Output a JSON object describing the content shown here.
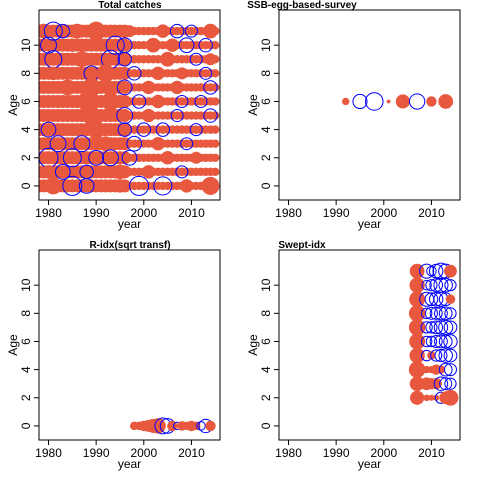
{
  "colors": {
    "positive": "#E8583F",
    "negative": "#0000FF",
    "axis": "#000000"
  },
  "chart_data": [
    {
      "type": "scatter",
      "title": "Total catches",
      "xlabel": "year",
      "ylabel": "Age",
      "xlim": [
        1978,
        2016
      ],
      "ylim": [
        -1,
        12.5
      ],
      "xticks": [
        1980,
        1990,
        2000,
        2010
      ],
      "yticks": [
        0,
        2,
        4,
        6,
        8,
        10
      ],
      "grid": false,
      "bubble_rule": "residuals for years 1978-2015 at ages 0-11; positive=filled red, negative=open blue",
      "points": [
        {
          "year": 1979,
          "age": 11,
          "value": 0.6
        },
        {
          "year": 1981,
          "age": 11,
          "value": -0.9
        },
        {
          "year": 1983,
          "age": 11,
          "value": -0.5
        },
        {
          "year": 1986,
          "age": 11,
          "value": 0.6
        },
        {
          "year": 1990,
          "age": 11,
          "value": 1.0
        },
        {
          "year": 1997,
          "age": 11,
          "value": 0.4
        },
        {
          "year": 2004,
          "age": 11,
          "value": 0.5
        },
        {
          "year": 2007,
          "age": 11,
          "value": -0.5
        },
        {
          "year": 2010,
          "age": 11,
          "value": -0.4
        },
        {
          "year": 2014,
          "age": 11,
          "value": 0.6
        },
        {
          "year": 1980,
          "age": 10,
          "value": -0.7
        },
        {
          "year": 1985,
          "age": 10,
          "value": 0.5
        },
        {
          "year": 1994,
          "age": 10,
          "value": -0.9
        },
        {
          "year": 1996,
          "age": 10,
          "value": -0.6
        },
        {
          "year": 2002,
          "age": 10,
          "value": 0.6
        },
        {
          "year": 2006,
          "age": 10,
          "value": 0.5
        },
        {
          "year": 2009,
          "age": 10,
          "value": -0.6
        },
        {
          "year": 2013,
          "age": 10,
          "value": -0.5
        },
        {
          "year": 1981,
          "age": 9,
          "value": -0.8
        },
        {
          "year": 1987,
          "age": 9,
          "value": 0.7
        },
        {
          "year": 1993,
          "age": 9,
          "value": -0.9
        },
        {
          "year": 1996,
          "age": 9,
          "value": -0.5
        },
        {
          "year": 2005,
          "age": 9,
          "value": 0.6
        },
        {
          "year": 2011,
          "age": 9,
          "value": -0.4
        },
        {
          "year": 2014,
          "age": 9,
          "value": 0.4
        },
        {
          "year": 1981,
          "age": 8,
          "value": 0.5
        },
        {
          "year": 1989,
          "age": 8,
          "value": -0.6
        },
        {
          "year": 1992,
          "age": 8,
          "value": 0.9
        },
        {
          "year": 1998,
          "age": 8,
          "value": -0.5
        },
        {
          "year": 2003,
          "age": 8,
          "value": 0.5
        },
        {
          "year": 2008,
          "age": 8,
          "value": 0.4
        },
        {
          "year": 2013,
          "age": 8,
          "value": -0.4
        },
        {
          "year": 1984,
          "age": 7,
          "value": 0.7
        },
        {
          "year": 1989,
          "age": 7,
          "value": 1.0
        },
        {
          "year": 1996,
          "age": 7,
          "value": -0.6
        },
        {
          "year": 2001,
          "age": 7,
          "value": 0.5
        },
        {
          "year": 2007,
          "age": 7,
          "value": 0.5
        },
        {
          "year": 2014,
          "age": 7,
          "value": -0.5
        },
        {
          "year": 1988,
          "age": 6,
          "value": 1.0
        },
        {
          "year": 1993,
          "age": 6,
          "value": 0.9
        },
        {
          "year": 1999,
          "age": 6,
          "value": -0.5
        },
        {
          "year": 2003,
          "age": 6,
          "value": 0.5
        },
        {
          "year": 2008,
          "age": 6,
          "value": -0.4
        },
        {
          "year": 2012,
          "age": 6,
          "value": -0.4
        },
        {
          "year": 1989,
          "age": 5,
          "value": 1.0
        },
        {
          "year": 1996,
          "age": 5,
          "value": -0.7
        },
        {
          "year": 2001,
          "age": 5,
          "value": 0.5
        },
        {
          "year": 2007,
          "age": 5,
          "value": -0.4
        },
        {
          "year": 2014,
          "age": 5,
          "value": -0.5
        },
        {
          "year": 1980,
          "age": 4,
          "value": -0.6
        },
        {
          "year": 1990,
          "age": 4,
          "value": 0.9
        },
        {
          "year": 1996,
          "age": 4,
          "value": -0.5
        },
        {
          "year": 2000,
          "age": 4,
          "value": -0.5
        },
        {
          "year": 2004,
          "age": 4,
          "value": -0.5
        },
        {
          "year": 2011,
          "age": 4,
          "value": -0.4
        },
        {
          "year": 1982,
          "age": 3,
          "value": -0.7
        },
        {
          "year": 1987,
          "age": 3,
          "value": -0.7
        },
        {
          "year": 1992,
          "age": 3,
          "value": 0.6
        },
        {
          "year": 1998,
          "age": 3,
          "value": -0.6
        },
        {
          "year": 2003,
          "age": 3,
          "value": 0.5
        },
        {
          "year": 2009,
          "age": 3,
          "value": -0.4
        },
        {
          "year": 1980,
          "age": 2,
          "value": -1.0
        },
        {
          "year": 1985,
          "age": 2,
          "value": -0.9
        },
        {
          "year": 1990,
          "age": 2,
          "value": -0.6
        },
        {
          "year": 1993,
          "age": 2,
          "value": -0.7
        },
        {
          "year": 1997,
          "age": 2,
          "value": -0.6
        },
        {
          "year": 2005,
          "age": 2,
          "value": 0.5
        },
        {
          "year": 2011,
          "age": 2,
          "value": 0.4
        },
        {
          "year": 1980,
          "age": 1,
          "value": 0.5
        },
        {
          "year": 1983,
          "age": 1,
          "value": -0.6
        },
        {
          "year": 1988,
          "age": 1,
          "value": -0.5
        },
        {
          "year": 1995,
          "age": 1,
          "value": 0.6
        },
        {
          "year": 2001,
          "age": 1,
          "value": 0.5
        },
        {
          "year": 2008,
          "age": 1,
          "value": -0.4
        },
        {
          "year": 1981,
          "age": 0,
          "value": 0.8
        },
        {
          "year": 1985,
          "age": 0,
          "value": -1.0
        },
        {
          "year": 1988,
          "age": 0,
          "value": -0.6
        },
        {
          "year": 1995,
          "age": 0,
          "value": 0.5
        },
        {
          "year": 1999,
          "age": 0,
          "value": -1.0
        },
        {
          "year": 2004,
          "age": 0,
          "value": -0.9
        },
        {
          "year": 2009,
          "age": 0,
          "value": 0.5
        },
        {
          "year": 2014,
          "age": 0,
          "value": 0.9
        }
      ]
    },
    {
      "type": "scatter",
      "title": "SSB-egg-based-survey",
      "xlabel": "year",
      "ylabel": "Age",
      "xlim": [
        1978,
        2016
      ],
      "ylim": [
        -1,
        12.5
      ],
      "xticks": [
        1980,
        1990,
        2000,
        2010
      ],
      "yticks": [
        0,
        2,
        4,
        6,
        8,
        10
      ],
      "grid": false,
      "points": [
        {
          "year": 1992,
          "age": 6,
          "value": 0.15
        },
        {
          "year": 1995,
          "age": 6,
          "value": -0.55
        },
        {
          "year": 1998,
          "age": 6,
          "value": -0.85
        },
        {
          "year": 2001,
          "age": 6,
          "value": 0.04
        },
        {
          "year": 2004,
          "age": 6,
          "value": 0.55
        },
        {
          "year": 2007,
          "age": 6,
          "value": -0.65
        },
        {
          "year": 2010,
          "age": 6,
          "value": 0.3
        },
        {
          "year": 2013,
          "age": 6,
          "value": 0.6
        }
      ]
    },
    {
      "type": "scatter",
      "title": "R-idx(sqrt transf)",
      "xlabel": "year",
      "ylabel": "Age",
      "xlim": [
        1978,
        2016
      ],
      "ylim": [
        -1,
        12.5
      ],
      "xticks": [
        1980,
        1990,
        2000,
        2010
      ],
      "yticks": [
        0,
        2,
        4,
        6,
        8,
        10
      ],
      "grid": false,
      "points": [
        {
          "year": 1998,
          "age": 0,
          "value": 0.2
        },
        {
          "year": 1999,
          "age": 0,
          "value": 0.2
        },
        {
          "year": 2000,
          "age": 0,
          "value": 0.3
        },
        {
          "year": 2001,
          "age": 0,
          "value": 0.4
        },
        {
          "year": 2002,
          "age": 0,
          "value": 0.55
        },
        {
          "year": 2003,
          "age": 0,
          "value": 0.65
        },
        {
          "year": 2004,
          "age": 0,
          "value": -0.7
        },
        {
          "year": 2005,
          "age": 0,
          "value": -0.6
        },
        {
          "year": 2006,
          "age": 0,
          "value": 0.3
        },
        {
          "year": 2007,
          "age": 0,
          "value": -0.15
        },
        {
          "year": 2008,
          "age": 0,
          "value": 0.25
        },
        {
          "year": 2009,
          "age": 0,
          "value": 0.2
        },
        {
          "year": 2010,
          "age": 0,
          "value": 0.3
        },
        {
          "year": 2011,
          "age": 0,
          "value": 0.2
        },
        {
          "year": 2012,
          "age": 0,
          "value": -0.2
        },
        {
          "year": 2013,
          "age": 0,
          "value": -0.5
        },
        {
          "year": 2014,
          "age": 0,
          "value": 0.3
        }
      ]
    },
    {
      "type": "scatter",
      "title": "Swept-idx",
      "xlabel": "year",
      "ylabel": "Age",
      "xlim": [
        1978,
        2016
      ],
      "ylim": [
        -1,
        12.5
      ],
      "xticks": [
        1980,
        1990,
        2000,
        2010
      ],
      "yticks": [
        0,
        2,
        4,
        6,
        8,
        10
      ],
      "grid": false,
      "years": [
        2007,
        2009,
        2010,
        2011,
        2012,
        2013,
        2014
      ],
      "ages": [
        2,
        3,
        4,
        5,
        6,
        7,
        8,
        9,
        10,
        11
      ],
      "points": [
        {
          "year": 2007,
          "age": 2,
          "value": 0.55
        },
        {
          "year": 2007,
          "age": 3,
          "value": 0.6
        },
        {
          "year": 2007,
          "age": 4,
          "value": 0.75
        },
        {
          "year": 2007,
          "age": 5,
          "value": 0.65
        },
        {
          "year": 2007,
          "age": 6,
          "value": 0.7
        },
        {
          "year": 2007,
          "age": 7,
          "value": 0.75
        },
        {
          "year": 2007,
          "age": 8,
          "value": 0.75
        },
        {
          "year": 2007,
          "age": 9,
          "value": 0.7
        },
        {
          "year": 2007,
          "age": 10,
          "value": 0.65
        },
        {
          "year": 2007,
          "age": 11,
          "value": 0.6
        },
        {
          "year": 2009,
          "age": 2,
          "value": 0.12
        },
        {
          "year": 2009,
          "age": 3,
          "value": 0.45
        },
        {
          "year": 2009,
          "age": 4,
          "value": 0.15
        },
        {
          "year": 2009,
          "age": 5,
          "value": -0.3
        },
        {
          "year": 2009,
          "age": 6,
          "value": -0.3
        },
        {
          "year": 2009,
          "age": 7,
          "value": -0.35
        },
        {
          "year": 2009,
          "age": 8,
          "value": -0.3
        },
        {
          "year": 2009,
          "age": 9,
          "value": -0.55
        },
        {
          "year": 2009,
          "age": 10,
          "value": -0.25
        },
        {
          "year": 2009,
          "age": 11,
          "value": -0.55
        },
        {
          "year": 2010,
          "age": 2,
          "value": 0.1
        },
        {
          "year": 2010,
          "age": 3,
          "value": 0.35
        },
        {
          "year": 2010,
          "age": 4,
          "value": 0.15
        },
        {
          "year": 2010,
          "age": 5,
          "value": 0.2
        },
        {
          "year": 2010,
          "age": 6,
          "value": -0.3
        },
        {
          "year": 2010,
          "age": 7,
          "value": -0.35
        },
        {
          "year": 2010,
          "age": 8,
          "value": -0.4
        },
        {
          "year": 2010,
          "age": 9,
          "value": -0.45
        },
        {
          "year": 2010,
          "age": 10,
          "value": -0.35
        },
        {
          "year": 2010,
          "age": 11,
          "value": -0.25
        },
        {
          "year": 2011,
          "age": 2,
          "value": 0.1
        },
        {
          "year": 2011,
          "age": 3,
          "value": 0.35
        },
        {
          "year": 2011,
          "age": 4,
          "value": 0.3
        },
        {
          "year": 2011,
          "age": 5,
          "value": -0.35
        },
        {
          "year": 2011,
          "age": 6,
          "value": -0.4
        },
        {
          "year": 2011,
          "age": 7,
          "value": -0.45
        },
        {
          "year": 2011,
          "age": 8,
          "value": -0.4
        },
        {
          "year": 2011,
          "age": 9,
          "value": -0.5
        },
        {
          "year": 2011,
          "age": 10,
          "value": -0.45
        },
        {
          "year": 2011,
          "age": 11,
          "value": -0.5
        },
        {
          "year": 2012,
          "age": 2,
          "value": -0.35
        },
        {
          "year": 2012,
          "age": 3,
          "value": -0.5
        },
        {
          "year": 2012,
          "age": 4,
          "value": 0.2
        },
        {
          "year": 2012,
          "age": 5,
          "value": -0.4
        },
        {
          "year": 2012,
          "age": 6,
          "value": -0.45
        },
        {
          "year": 2012,
          "age": 7,
          "value": -0.5
        },
        {
          "year": 2012,
          "age": 8,
          "value": -0.45
        },
        {
          "year": 2012,
          "age": 9,
          "value": -0.55
        },
        {
          "year": 2012,
          "age": 10,
          "value": -0.55
        },
        {
          "year": 2012,
          "age": 11,
          "value": -0.7
        },
        {
          "year": 2013,
          "age": 2,
          "value": 0.45
        },
        {
          "year": 2013,
          "age": 3,
          "value": -0.4
        },
        {
          "year": 2013,
          "age": 4,
          "value": -0.45
        },
        {
          "year": 2013,
          "age": 5,
          "value": -0.5
        },
        {
          "year": 2013,
          "age": 6,
          "value": -0.45
        },
        {
          "year": 2013,
          "age": 7,
          "value": -0.55
        },
        {
          "year": 2013,
          "age": 8,
          "value": -0.45
        },
        {
          "year": 2013,
          "age": 9,
          "value": -0.45
        },
        {
          "year": 2013,
          "age": 10,
          "value": -0.5
        },
        {
          "year": 2013,
          "age": 11,
          "value": -0.55
        },
        {
          "year": 2014,
          "age": 2,
          "value": 0.7
        },
        {
          "year": 2014,
          "age": 3,
          "value": -0.35
        },
        {
          "year": 2014,
          "age": 4,
          "value": -0.4
        },
        {
          "year": 2014,
          "age": 5,
          "value": -0.45
        },
        {
          "year": 2014,
          "age": 6,
          "value": -0.5
        },
        {
          "year": 2014,
          "age": 7,
          "value": -0.45
        },
        {
          "year": 2014,
          "age": 8,
          "value": -0.35
        },
        {
          "year": 2014,
          "age": 9,
          "value": 0.25
        },
        {
          "year": 2014,
          "age": 10,
          "value": -0.35
        },
        {
          "year": 2014,
          "age": 11,
          "value": 0.45
        }
      ]
    }
  ]
}
